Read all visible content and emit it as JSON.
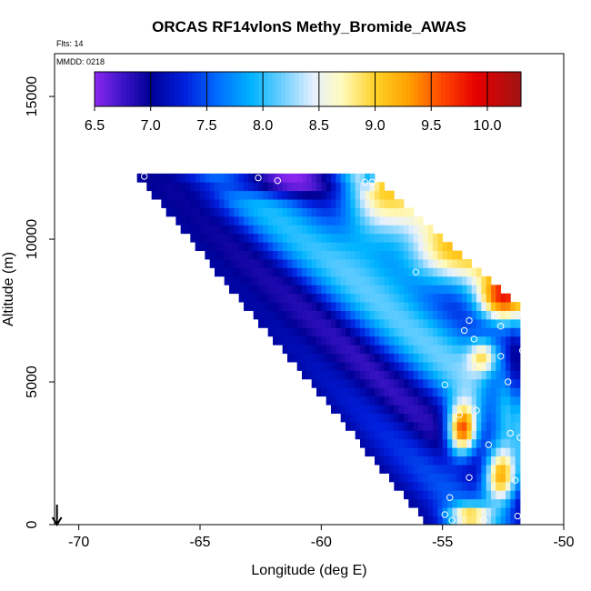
{
  "chart_data": {
    "type": "heatmap",
    "title": "ORCAS RF14vlonS Methy_Bromide_AWAS",
    "notes": [
      "Flts: 14",
      "MMDD: 0218"
    ],
    "xlabel": "Longitude (deg E)",
    "ylabel": "Altitude (m)",
    "xlim": [
      -71,
      -50
    ],
    "ylim": [
      0,
      16500
    ],
    "x_ticks": [
      -70,
      -65,
      -60,
      -55,
      -50
    ],
    "x_tick_labels": [
      "-70",
      "-65",
      "-60",
      "-55",
      "-50"
    ],
    "y_ticks": [
      0,
      5000,
      10000,
      15000
    ],
    "y_tick_labels": [
      "0",
      "5000",
      "10000",
      "15000"
    ],
    "colorbar": {
      "range": [
        6.5,
        10.3
      ],
      "ticks": [
        6.5,
        7.0,
        7.5,
        8.0,
        8.5,
        9.0,
        9.5,
        10.0
      ],
      "tick_labels": [
        "6.5",
        "7.0",
        "7.5",
        "8.0",
        "8.5",
        "9.0",
        "9.5",
        "10.0"
      ],
      "position": "top"
    },
    "field_region": {
      "top_altitude": 12200,
      "top_left_lon": -67.6,
      "bottom_left_lon": -55.6,
      "right_lon": -51.8,
      "right_top_altitude": 7600,
      "top_right_lon": -57.8
    },
    "sample_points": [
      {
        "lon": -67.3,
        "alt": 12200
      },
      {
        "lon": -62.6,
        "alt": 12150
      },
      {
        "lon": -61.8,
        "alt": 12050
      },
      {
        "lon": -58.2,
        "alt": 12000
      },
      {
        "lon": -57.9,
        "alt": 12000
      },
      {
        "lon": -56.1,
        "alt": 8850
      },
      {
        "lon": -51.6,
        "alt": 7600
      },
      {
        "lon": -53.9,
        "alt": 7150
      },
      {
        "lon": -52.8,
        "alt": 7300
      },
      {
        "lon": -52.6,
        "alt": 6950
      },
      {
        "lon": -54.1,
        "alt": 6800
      },
      {
        "lon": -53.7,
        "alt": 6500
      },
      {
        "lon": -51.7,
        "alt": 6100
      },
      {
        "lon": -52.6,
        "alt": 5900
      },
      {
        "lon": -52.3,
        "alt": 5000
      },
      {
        "lon": -54.9,
        "alt": 4900
      },
      {
        "lon": -53.6,
        "alt": 4000
      },
      {
        "lon": -54.3,
        "alt": 3850
      },
      {
        "lon": -52.2,
        "alt": 3200
      },
      {
        "lon": -51.8,
        "alt": 3050
      },
      {
        "lon": -53.1,
        "alt": 2800
      },
      {
        "lon": -53.9,
        "alt": 1650
      },
      {
        "lon": -52.0,
        "alt": 1550
      },
      {
        "lon": -54.7,
        "alt": 950
      },
      {
        "lon": -54.9,
        "alt": 350
      },
      {
        "lon": -54.6,
        "alt": 150
      },
      {
        "lon": -53.3,
        "alt": 150
      },
      {
        "lon": -51.9,
        "alt": 300
      }
    ],
    "features": [
      {
        "label": "high concentration pocket",
        "lon_range": [
          -55.0,
          -53.5
        ],
        "alt_range": [
          2200,
          4000
        ],
        "value": 9.8
      },
      {
        "label": "warm band near surface",
        "lon_range": [
          -53.5,
          -52.0
        ],
        "alt_range": [
          500,
          2800
        ],
        "value": 9.6
      },
      {
        "label": "high band upper right",
        "lon_range": [
          -54.0,
          -51.6
        ],
        "alt_range": [
          7000,
          8800
        ],
        "value": 9.0
      }
    ],
    "flight_direction_marker": {
      "lon": -70.9,
      "alt_range": [
        700,
        0
      ],
      "glyph": "arrow-down"
    }
  }
}
